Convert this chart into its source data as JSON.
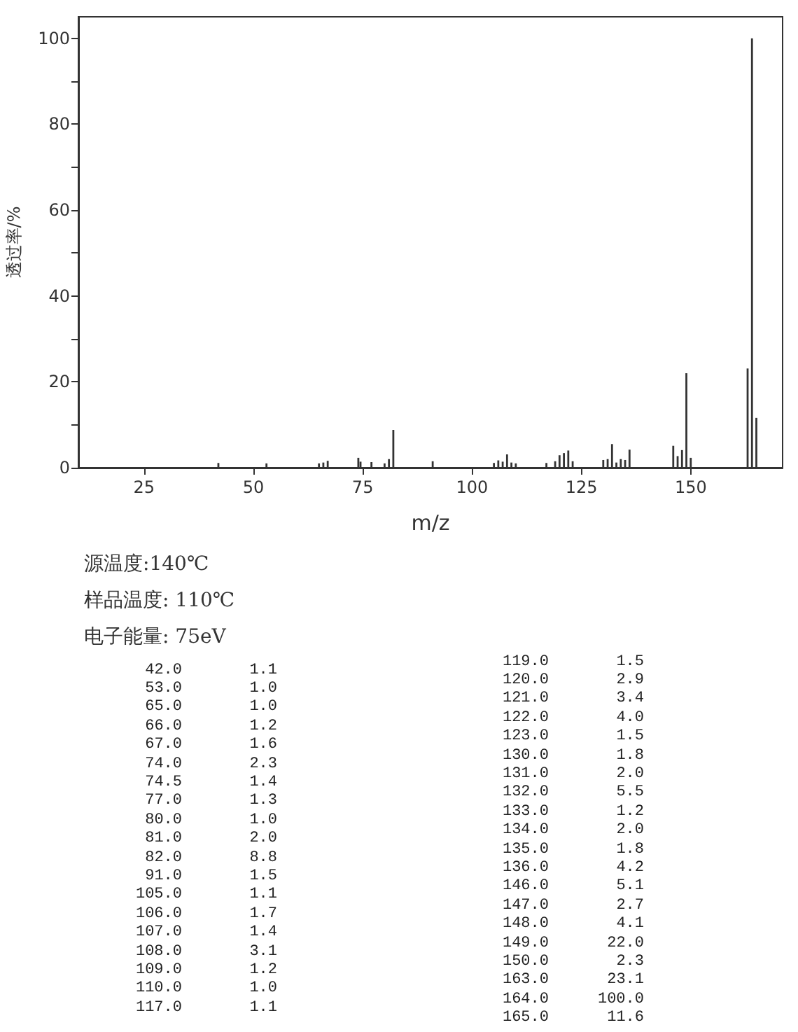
{
  "chart_data": [
    {
      "type": "bar",
      "xlabel": "m/z",
      "ylabel": "透过率/%",
      "x": [
        42.0,
        53.0,
        65.0,
        66.0,
        67.0,
        74.0,
        74.5,
        77.0,
        80.0,
        81.0,
        82.0,
        91.0,
        105.0,
        106.0,
        107.0,
        108.0,
        109.0,
        110.0,
        117.0,
        119.0,
        120.0,
        121.0,
        122.0,
        123.0,
        130.0,
        131.0,
        132.0,
        133.0,
        134.0,
        135.0,
        136.0,
        146.0,
        147.0,
        148.0,
        149.0,
        150.0,
        163.0,
        164.0,
        165.0
      ],
      "values": [
        1.1,
        1.0,
        1.0,
        1.2,
        1.6,
        2.3,
        1.4,
        1.3,
        1.0,
        2.0,
        8.8,
        1.5,
        1.1,
        1.7,
        1.4,
        3.1,
        1.2,
        1.0,
        1.1,
        1.5,
        2.9,
        3.4,
        4.0,
        1.5,
        1.8,
        2.0,
        5.5,
        1.2,
        2.0,
        1.8,
        4.2,
        5.1,
        2.7,
        4.1,
        22.0,
        2.3,
        23.1,
        100.0,
        11.6
      ],
      "color": "#333333",
      "xlim": [
        10,
        171
      ],
      "ylim": [
        0,
        105
      ],
      "xticks": [
        25,
        50,
        75,
        100,
        125,
        150
      ],
      "yticks": [
        0,
        {
          "value": 10,
          "label": null
        },
        20,
        {
          "value": 30,
          "label": null
        },
        40,
        {
          "value": 50,
          "label": null
        },
        60,
        {
          "value": 70,
          "label": null
        },
        80,
        {
          "value": 90,
          "label": null
        },
        100
      ],
      "grid": false,
      "annotations": [
        "源温度:140℃",
        "样品温度: 110℃",
        "电子能量: 75eV"
      ]
    },
    {
      "type": "other",
      "annotations": [
        "42.0",
        "1.1",
        "53.0",
        "1.0",
        "65.0",
        "1.0",
        "66.0",
        "1.2",
        "67.0",
        "1.6",
        "74.0",
        "2.3",
        "74.5",
        "1.4",
        "77.0",
        "1.3",
        "80.0",
        "1.0",
        "81.0",
        "2.0",
        "82.0",
        "8.8",
        "91.0",
        "1.5",
        "105.0",
        "1.1",
        "106.0",
        "1.7",
        "107.0",
        "1.4",
        "108.0",
        "3.1",
        "109.0",
        "1.2",
        "110.0",
        "1.0",
        "117.0",
        "1.1",
        "119.0",
        "1.5",
        "120.0",
        "2.9",
        "121.0",
        "3.4",
        "122.0",
        "4.0",
        "123.0",
        "1.5",
        "130.0",
        "1.8",
        "131.0",
        "2.0",
        "132.0",
        "5.5",
        "133.0",
        "1.2",
        "134.0",
        "2.0",
        "135.0",
        "1.8",
        "136.0",
        "4.2",
        "146.0",
        "5.1",
        "147.0",
        "2.7",
        "148.0",
        "4.1",
        "149.0",
        "22.0",
        "150.0",
        "2.3",
        "163.0",
        "23.1",
        "164.0",
        "100.0",
        "165.0",
        "11.6"
      ]
    }
  ]
}
